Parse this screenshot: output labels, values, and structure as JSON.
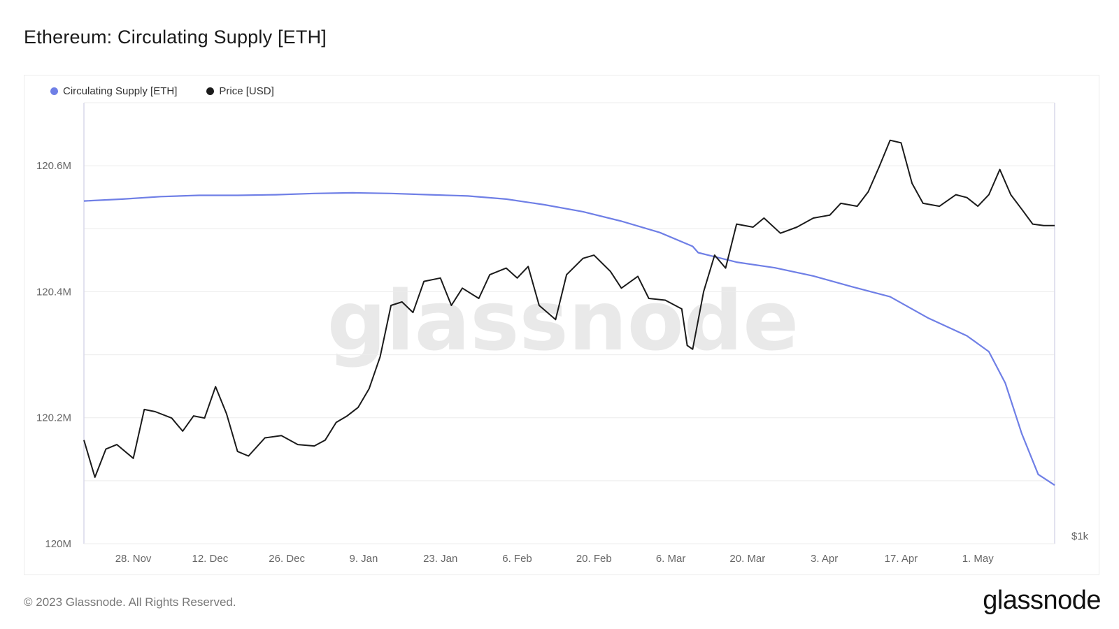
{
  "header": {
    "title": "Ethereum: Circulating Supply [ETH]"
  },
  "footer": {
    "copyright": "© 2023 Glassnode. All Rights Reserved.",
    "logo_text": "glassnode"
  },
  "watermark": "glassnode",
  "colors": {
    "supply": "#6f7fe6",
    "price": "#1b1b1b",
    "grid": "#ececec",
    "axis": "#d8d8ea"
  },
  "chart_data": {
    "type": "line",
    "title": "Ethereum: Circulating Supply [ETH]",
    "legend_position": "top-left",
    "grid": true,
    "x_ticks": [
      "28. Nov",
      "12. Dec",
      "26. Dec",
      "9. Jan",
      "23. Jan",
      "6. Feb",
      "20. Feb",
      "6. Mar",
      "20. Mar",
      "3. Apr",
      "17. Apr",
      "1. May"
    ],
    "x_range": [
      "2022-11-19",
      "2023-05-15"
    ],
    "y_left": {
      "ticks": [
        "120M",
        "120.2M",
        "120.4M",
        "120.6M"
      ],
      "range": [
        120000000,
        120700000
      ]
    },
    "y_right": {
      "ticks": [
        "$1k"
      ],
      "range_usd": [
        1000,
        2250
      ],
      "scale": "log"
    },
    "series": [
      {
        "name": "Circulating Supply [ETH]",
        "axis": "left",
        "points": [
          [
            "2022-11-19",
            120544000
          ],
          [
            "2022-11-26",
            120547000
          ],
          [
            "2022-12-03",
            120551000
          ],
          [
            "2022-12-10",
            120553000
          ],
          [
            "2022-12-17",
            120553000
          ],
          [
            "2022-12-24",
            120554000
          ],
          [
            "2022-12-31",
            120556000
          ],
          [
            "2023-01-07",
            120557000
          ],
          [
            "2023-01-14",
            120556000
          ],
          [
            "2023-01-21",
            120554000
          ],
          [
            "2023-01-28",
            120552000
          ],
          [
            "2023-02-04",
            120547000
          ],
          [
            "2023-02-11",
            120538000
          ],
          [
            "2023-02-18",
            120527000
          ],
          [
            "2023-02-25",
            120512000
          ],
          [
            "2023-03-04",
            120494000
          ],
          [
            "2023-03-10",
            120472000
          ],
          [
            "2023-03-11",
            120462000
          ],
          [
            "2023-03-18",
            120447000
          ],
          [
            "2023-03-25",
            120438000
          ],
          [
            "2023-04-01",
            120425000
          ],
          [
            "2023-04-08",
            120408000
          ],
          [
            "2023-04-15",
            120392000
          ],
          [
            "2023-04-22",
            120358000
          ],
          [
            "2023-04-29",
            120330000
          ],
          [
            "2023-05-03",
            120305000
          ],
          [
            "2023-05-06",
            120255000
          ],
          [
            "2023-05-09",
            120175000
          ],
          [
            "2023-05-12",
            120110000
          ],
          [
            "2023-05-15",
            120093000
          ]
        ]
      },
      {
        "name": "Price [USD]",
        "axis": "right",
        "points": [
          [
            "2022-11-19",
            1210
          ],
          [
            "2022-11-21",
            1130
          ],
          [
            "2022-11-23",
            1190
          ],
          [
            "2022-11-25",
            1200
          ],
          [
            "2022-11-28",
            1170
          ],
          [
            "2022-11-30",
            1280
          ],
          [
            "2022-12-02",
            1275
          ],
          [
            "2022-12-05",
            1260
          ],
          [
            "2022-12-07",
            1230
          ],
          [
            "2022-12-09",
            1265
          ],
          [
            "2022-12-11",
            1260
          ],
          [
            "2022-12-13",
            1335
          ],
          [
            "2022-12-15",
            1270
          ],
          [
            "2022-12-17",
            1185
          ],
          [
            "2022-12-19",
            1175
          ],
          [
            "2022-12-22",
            1215
          ],
          [
            "2022-12-25",
            1220
          ],
          [
            "2022-12-28",
            1200
          ],
          [
            "2022-12-31",
            1197
          ],
          [
            "2023-01-02",
            1210
          ],
          [
            "2023-01-04",
            1250
          ],
          [
            "2023-01-06",
            1265
          ],
          [
            "2023-01-08",
            1285
          ],
          [
            "2023-01-10",
            1330
          ],
          [
            "2023-01-12",
            1410
          ],
          [
            "2023-01-14",
            1550
          ],
          [
            "2023-01-16",
            1560
          ],
          [
            "2023-01-18",
            1530
          ],
          [
            "2023-01-20",
            1620
          ],
          [
            "2023-01-23",
            1630
          ],
          [
            "2023-01-25",
            1550
          ],
          [
            "2023-01-27",
            1600
          ],
          [
            "2023-01-30",
            1570
          ],
          [
            "2023-02-01",
            1640
          ],
          [
            "2023-02-04",
            1660
          ],
          [
            "2023-02-06",
            1630
          ],
          [
            "2023-02-08",
            1665
          ],
          [
            "2023-02-10",
            1550
          ],
          [
            "2023-02-13",
            1510
          ],
          [
            "2023-02-15",
            1640
          ],
          [
            "2023-02-18",
            1690
          ],
          [
            "2023-02-20",
            1700
          ],
          [
            "2023-02-23",
            1650
          ],
          [
            "2023-02-25",
            1600
          ],
          [
            "2023-02-28",
            1635
          ],
          [
            "2023-03-02",
            1570
          ],
          [
            "2023-03-05",
            1565
          ],
          [
            "2023-03-08",
            1540
          ],
          [
            "2023-03-09",
            1440
          ],
          [
            "2023-03-10",
            1430
          ],
          [
            "2023-03-12",
            1590
          ],
          [
            "2023-03-14",
            1700
          ],
          [
            "2023-03-16",
            1660
          ],
          [
            "2023-03-18",
            1800
          ],
          [
            "2023-03-21",
            1790
          ],
          [
            "2023-03-23",
            1820
          ],
          [
            "2023-03-26",
            1770
          ],
          [
            "2023-03-29",
            1790
          ],
          [
            "2023-04-01",
            1820
          ],
          [
            "2023-04-04",
            1830
          ],
          [
            "2023-04-06",
            1870
          ],
          [
            "2023-04-09",
            1860
          ],
          [
            "2023-04-11",
            1910
          ],
          [
            "2023-04-13",
            2000
          ],
          [
            "2023-04-15",
            2100
          ],
          [
            "2023-04-17",
            2090
          ],
          [
            "2023-04-19",
            1940
          ],
          [
            "2023-04-21",
            1870
          ],
          [
            "2023-04-24",
            1860
          ],
          [
            "2023-04-27",
            1900
          ],
          [
            "2023-04-29",
            1890
          ],
          [
            "2023-05-01",
            1860
          ],
          [
            "2023-05-03",
            1900
          ],
          [
            "2023-05-05",
            1990
          ],
          [
            "2023-05-07",
            1900
          ],
          [
            "2023-05-09",
            1850
          ],
          [
            "2023-05-11",
            1800
          ],
          [
            "2023-05-13",
            1795
          ],
          [
            "2023-05-15",
            1795
          ]
        ]
      }
    ]
  }
}
